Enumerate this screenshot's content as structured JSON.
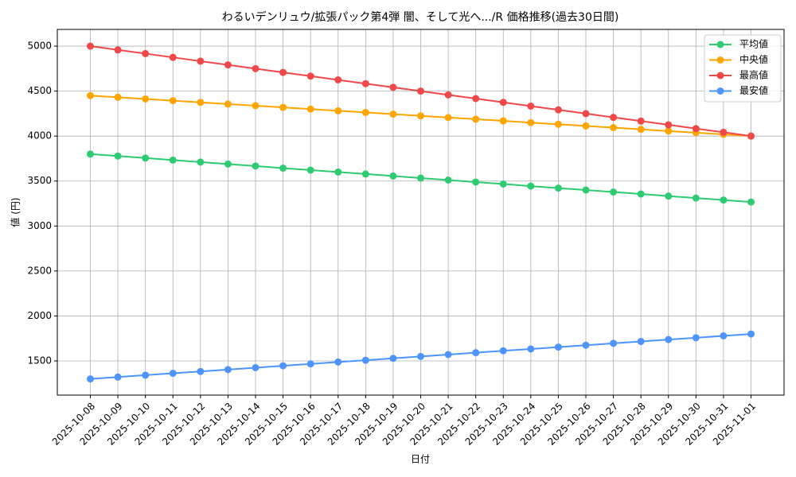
{
  "chart_data": {
    "type": "line",
    "title": "わるいデンリュウ/拡張パック第4弾 闇、そして光へ.../R 価格推移(過去30日間)",
    "x_label": "日付",
    "y_label": "値 (円)",
    "categories": [
      "2025-10-08",
      "2025-10-09",
      "2025-10-10",
      "2025-10-11",
      "2025-10-12",
      "2025-10-13",
      "2025-10-14",
      "2025-10-15",
      "2025-10-16",
      "2025-10-17",
      "2025-10-18",
      "2025-10-19",
      "2025-10-20",
      "2025-10-21",
      "2025-10-22",
      "2025-10-23",
      "2025-10-24",
      "2025-10-25",
      "2025-10-26",
      "2025-10-27",
      "2025-10-28",
      "2025-10-29",
      "2025-10-30",
      "2025-10-31",
      "2025-11-01"
    ],
    "series": [
      {
        "name": "平均値",
        "color": "#2ecc71",
        "values": [
          3800,
          3778,
          3756,
          3733,
          3711,
          3689,
          3667,
          3644,
          3622,
          3600,
          3578,
          3556,
          3533,
          3511,
          3489,
          3467,
          3444,
          3422,
          3400,
          3378,
          3356,
          3333,
          3311,
          3289,
          3267
        ]
      },
      {
        "name": "中央値",
        "color": "#ffa500",
        "values": [
          4450,
          4431,
          4413,
          4394,
          4375,
          4356,
          4338,
          4319,
          4300,
          4281,
          4263,
          4244,
          4225,
          4206,
          4188,
          4169,
          4150,
          4131,
          4113,
          4094,
          4075,
          4056,
          4038,
          4019,
          4000
        ]
      },
      {
        "name": "最高値",
        "color": "#f04848",
        "values": [
          5000,
          4958,
          4917,
          4875,
          4833,
          4792,
          4750,
          4708,
          4667,
          4625,
          4583,
          4542,
          4500,
          4458,
          4417,
          4375,
          4333,
          4292,
          4250,
          4208,
          4167,
          4125,
          4083,
          4042,
          4000
        ]
      },
      {
        "name": "最安値",
        "color": "#4d94ff",
        "values": [
          1300,
          1321,
          1342,
          1363,
          1383,
          1404,
          1425,
          1446,
          1467,
          1488,
          1508,
          1529,
          1550,
          1571,
          1592,
          1613,
          1633,
          1654,
          1675,
          1696,
          1717,
          1738,
          1758,
          1779,
          1800
        ]
      }
    ],
    "ylim": [
      1120,
      5186
    ],
    "yticks": [
      1500,
      2000,
      2500,
      3000,
      3500,
      4000,
      4500,
      5000
    ],
    "grid": true,
    "legend": "upper-right"
  }
}
